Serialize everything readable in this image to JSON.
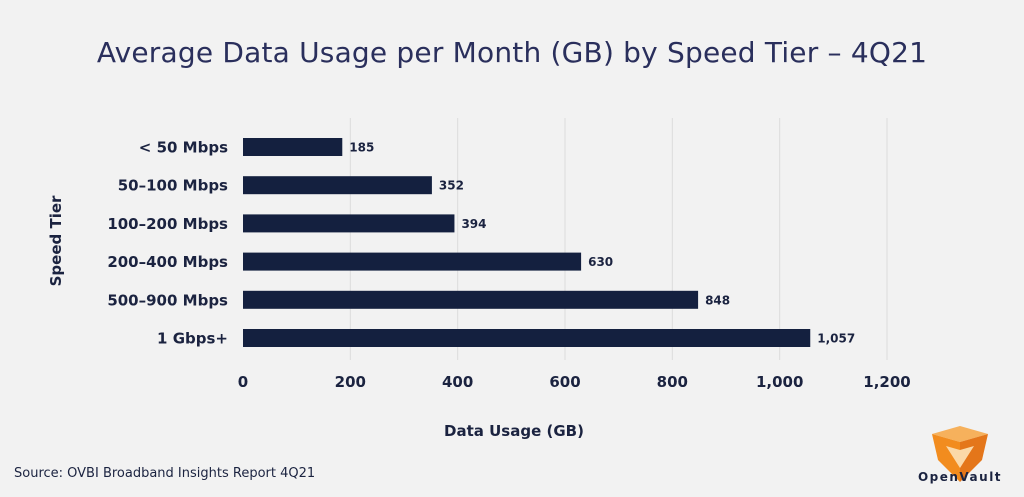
{
  "title": "Average Data Usage per Month (GB) by Speed Tier – 4Q21",
  "source": "Source: OVBI Broadband Insights Report 4Q21",
  "brand": {
    "name": "OpenVault",
    "logo_text": "OpenVault",
    "primary_color": "#f28c1e"
  },
  "chart_data": {
    "type": "bar",
    "orientation": "horizontal",
    "categories": [
      "< 50 Mbps",
      "50–100 Mbps",
      "100–200 Mbps",
      "200–400 Mbps",
      "500–900 Mbps",
      "1 Gbps+"
    ],
    "values": [
      185,
      352,
      394,
      630,
      848,
      1057
    ],
    "value_labels": [
      "185",
      "352",
      "394",
      "630",
      "848",
      "1,057"
    ],
    "xlabel": "Data Usage (GB)",
    "ylabel": "Speed Tier",
    "xlim": [
      0,
      1200
    ],
    "x_ticks": [
      0,
      200,
      400,
      600,
      800,
      1000,
      1200
    ],
    "x_tick_labels": [
      "0",
      "200",
      "400",
      "600",
      "800",
      "1,000",
      "1,200"
    ],
    "grid": true,
    "bar_color": "#14203f",
    "grid_color": "#dcdcdc"
  }
}
